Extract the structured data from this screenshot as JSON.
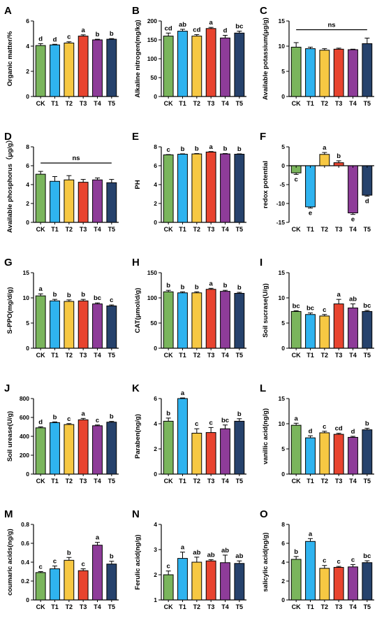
{
  "colors": {
    "CK": "#7ab55c",
    "T1": "#2fb3ef",
    "T2": "#f7c843",
    "T3": "#e8442f",
    "T4": "#8e3c99",
    "T5": "#26426c"
  },
  "chart_data": [
    {
      "letter": "A",
      "type": "bar",
      "ylabel": "Organic matter/%",
      "ylim": [
        0,
        6
      ],
      "yticks": [
        0,
        2,
        4,
        6
      ],
      "categories": [
        "CK",
        "T1",
        "T2",
        "T3",
        "T4",
        "T5"
      ],
      "values": [
        4.05,
        4.1,
        4.25,
        4.8,
        4.5,
        4.55
      ],
      "errors": [
        0.15,
        0.05,
        0.1,
        0.1,
        0.05,
        0.05
      ],
      "sig": [
        "d",
        "d",
        "c",
        "a",
        "b",
        "b"
      ]
    },
    {
      "letter": "B",
      "type": "bar",
      "ylabel": "Alkaline nitrogen(mg/kg)",
      "ylim": [
        0,
        200
      ],
      "yticks": [
        0,
        50,
        100,
        150,
        200
      ],
      "categories": [
        "CK",
        "T1",
        "T2",
        "T3",
        "T4",
        "T5"
      ],
      "values": [
        160,
        173,
        160,
        180,
        155,
        168
      ],
      "errors": [
        8,
        5,
        4,
        3,
        7,
        5
      ],
      "sig": [
        "cd",
        "ab",
        "cd",
        "a",
        "d",
        "bc"
      ]
    },
    {
      "letter": "C",
      "type": "bar",
      "ylabel": "Available potassium(μg/g)",
      "ylim": [
        0,
        15
      ],
      "yticks": [
        0,
        5,
        10,
        15
      ],
      "categories": [
        "CK",
        "T1",
        "T2",
        "T3",
        "T4",
        "T5"
      ],
      "values": [
        9.8,
        9.5,
        9.2,
        9.4,
        9.3,
        10.5
      ],
      "errors": [
        0.9,
        0.3,
        0.3,
        0.2,
        0.1,
        1.1
      ],
      "ns": "ns"
    },
    {
      "letter": "D",
      "type": "bar",
      "ylabel": "Available phosphorus（μg/g）",
      "ylim": [
        0,
        8
      ],
      "yticks": [
        0,
        2,
        4,
        6,
        8
      ],
      "categories": [
        "CK",
        "T1",
        "T2",
        "T3",
        "T4",
        "T5"
      ],
      "values": [
        5.1,
        4.35,
        4.5,
        4.25,
        4.5,
        4.2
      ],
      "errors": [
        0.3,
        0.5,
        0.45,
        0.3,
        0.2,
        0.35
      ],
      "ns": "ns"
    },
    {
      "letter": "E",
      "type": "bar",
      "ylabel": "PH",
      "ylim": [
        0,
        8
      ],
      "yticks": [
        0,
        2,
        4,
        6,
        8
      ],
      "categories": [
        "CK",
        "T1",
        "T2",
        "T3",
        "T4",
        "T5"
      ],
      "values": [
        7.15,
        7.22,
        7.25,
        7.45,
        7.25,
        7.22
      ],
      "errors": [
        0.03,
        0.04,
        0.04,
        0.05,
        0.04,
        0.04
      ],
      "sig": [
        "c",
        "b",
        "b",
        "a",
        "b",
        "b"
      ]
    },
    {
      "letter": "F",
      "type": "bar",
      "ylabel": "redox potential",
      "ylim": [
        -15,
        5
      ],
      "yticks": [
        -15,
        -10,
        -5,
        0,
        5
      ],
      "categories": [
        "CK",
        "T1",
        "T2",
        "T3",
        "T4",
        "T5"
      ],
      "values": [
        -1.9,
        -10.9,
        3.0,
        0.8,
        -12.5,
        -7.8
      ],
      "errors": [
        0.4,
        0.3,
        0.5,
        0.5,
        0.4,
        0.25
      ],
      "sig": [
        "c",
        "e",
        "a",
        "b",
        "e",
        "d"
      ]
    },
    {
      "letter": "G",
      "type": "bar",
      "ylabel": "S-PPO(mg/d/g)",
      "ylim": [
        0,
        15
      ],
      "yticks": [
        0,
        5,
        10,
        15
      ],
      "categories": [
        "CK",
        "T1",
        "T2",
        "T3",
        "T4",
        "T5"
      ],
      "values": [
        10.4,
        9.4,
        9.3,
        9.4,
        8.8,
        8.4
      ],
      "errors": [
        0.4,
        0.3,
        0.3,
        0.3,
        0.2,
        0.2
      ],
      "sig": [
        "a",
        "b",
        "b",
        "b",
        "bc",
        "c"
      ]
    },
    {
      "letter": "H",
      "type": "bar",
      "ylabel": "CAT(μmol/d/g)",
      "ylim": [
        0,
        150
      ],
      "yticks": [
        0,
        50,
        100,
        150
      ],
      "categories": [
        "CK",
        "T1",
        "T2",
        "T3",
        "T4",
        "T5"
      ],
      "values": [
        112,
        110,
        110,
        117,
        113,
        109
      ],
      "errors": [
        3,
        2,
        2,
        2,
        2,
        2
      ],
      "sig": [
        "b",
        "b",
        "b",
        "a",
        "b",
        "b"
      ]
    },
    {
      "letter": "I",
      "type": "bar",
      "ylabel": "Soil sucrase(U/g)",
      "ylim": [
        0,
        15
      ],
      "yticks": [
        0,
        5,
        10,
        15
      ],
      "categories": [
        "CK",
        "T1",
        "T2",
        "T3",
        "T4",
        "T5"
      ],
      "values": [
        7.3,
        6.7,
        6.4,
        8.8,
        8.0,
        7.3
      ],
      "errors": [
        0.15,
        0.3,
        0.3,
        0.9,
        0.8,
        0.2
      ],
      "sig": [
        "bc",
        "bc",
        "c",
        "a",
        "ab",
        "bc"
      ]
    },
    {
      "letter": "J",
      "type": "bar",
      "ylabel": "Soil urease(U/g)",
      "ylim": [
        0,
        800
      ],
      "yticks": [
        0,
        200,
        400,
        600,
        800
      ],
      "categories": [
        "CK",
        "T1",
        "T2",
        "T3",
        "T4",
        "T5"
      ],
      "values": [
        490,
        545,
        525,
        575,
        512,
        550
      ],
      "errors": [
        10,
        8,
        10,
        15,
        8,
        8
      ],
      "sig": [
        "d",
        "b",
        "c",
        "a",
        "c",
        "b"
      ]
    },
    {
      "letter": "K",
      "type": "bar",
      "ylabel": "Paraben(ng/g)",
      "ylim": [
        0,
        6
      ],
      "yticks": [
        0,
        2,
        4,
        6
      ],
      "categories": [
        "CK",
        "T1",
        "T2",
        "T3",
        "T4",
        "T5"
      ],
      "values": [
        4.2,
        6.0,
        3.25,
        3.3,
        3.6,
        4.2
      ],
      "errors": [
        0.25,
        0.05,
        0.35,
        0.4,
        0.3,
        0.2
      ],
      "sig": [
        "b",
        "a",
        "c",
        "c",
        "bc",
        "b"
      ]
    },
    {
      "letter": "L",
      "type": "bar",
      "ylabel": "vanillic acid(ng/g)",
      "ylim": [
        0,
        15
      ],
      "yticks": [
        0,
        5,
        10,
        15
      ],
      "categories": [
        "CK",
        "T1",
        "T2",
        "T3",
        "T4",
        "T5"
      ],
      "values": [
        9.7,
        7.2,
        8.2,
        7.9,
        7.3,
        8.8
      ],
      "errors": [
        0.4,
        0.4,
        0.3,
        0.2,
        0.2,
        0.3
      ],
      "sig": [
        "a",
        "d",
        "c",
        "cd",
        "d",
        "b"
      ]
    },
    {
      "letter": "M",
      "type": "bar",
      "ylabel": "coumaric acids(ng/g)",
      "ylim": [
        0,
        0.8
      ],
      "yticks": [
        0,
        0.2,
        0.4,
        0.6,
        0.8
      ],
      "categories": [
        "CK",
        "T1",
        "T2",
        "T3",
        "T4",
        "T5"
      ],
      "values": [
        0.29,
        0.33,
        0.42,
        0.31,
        0.58,
        0.38
      ],
      "errors": [
        0.01,
        0.03,
        0.03,
        0.02,
        0.03,
        0.03
      ],
      "sig": [
        "c",
        "c",
        "b",
        "c",
        "a",
        "b"
      ]
    },
    {
      "letter": "N",
      "type": "bar",
      "ylabel": "Ferulic acid(ng/g)",
      "ylim": [
        1,
        4
      ],
      "yticks": [
        1,
        2,
        3,
        4
      ],
      "categories": [
        "CK",
        "T1",
        "T2",
        "T3",
        "T4",
        "T5"
      ],
      "values": [
        2.0,
        2.65,
        2.5,
        2.55,
        2.48,
        2.45
      ],
      "errors": [
        0.15,
        0.25,
        0.2,
        0.05,
        0.3,
        0.1
      ],
      "sig": [
        "c",
        "a",
        "ab",
        "ab",
        "ab",
        "ab"
      ]
    },
    {
      "letter": "O",
      "type": "bar",
      "ylabel": "salicylic acid(ng/g)",
      "ylim": [
        0,
        8
      ],
      "yticks": [
        0,
        2,
        4,
        6,
        8
      ],
      "categories": [
        "CK",
        "T1",
        "T2",
        "T3",
        "T4",
        "T5"
      ],
      "values": [
        4.3,
        6.2,
        3.35,
        3.45,
        3.5,
        3.95
      ],
      "errors": [
        0.3,
        0.3,
        0.3,
        0.1,
        0.25,
        0.2
      ],
      "sig": [
        "b",
        "a",
        "c",
        "c",
        "c",
        "bc"
      ]
    }
  ]
}
